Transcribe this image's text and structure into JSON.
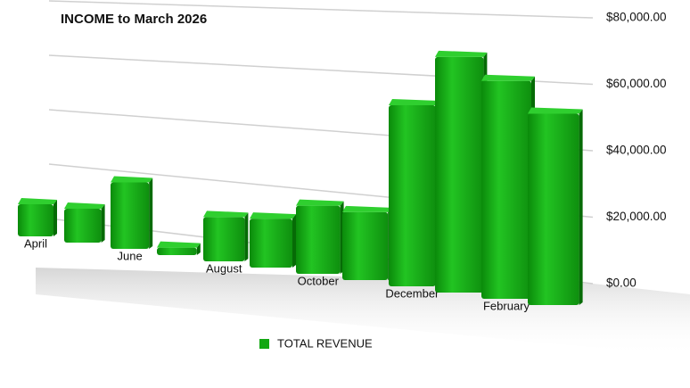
{
  "chart_data": {
    "type": "bar3d",
    "title": "INCOME to March 2026",
    "categories": [
      "April",
      null,
      "June",
      null,
      "August",
      null,
      "October",
      null,
      "December",
      null,
      "February",
      null
    ],
    "series": [
      {
        "name": "TOTAL REVENUE",
        "color": "#13a813",
        "values": [
          15000,
          15000,
          28000,
          3000,
          17000,
          18000,
          24000,
          23000,
          59000,
          74000,
          66000,
          56000
        ]
      }
    ],
    "ylim": [
      0,
      80000
    ],
    "yticks": [
      {
        "value": 0,
        "label": "$0.00"
      },
      {
        "value": 20000,
        "label": "$20,000.00"
      },
      {
        "value": 40000,
        "label": "$40,000.00"
      },
      {
        "value": 60000,
        "label": "$60,000.00"
      },
      {
        "value": 80000,
        "label": "$80,000.00"
      }
    ],
    "grid": true,
    "legend": "bottom"
  }
}
